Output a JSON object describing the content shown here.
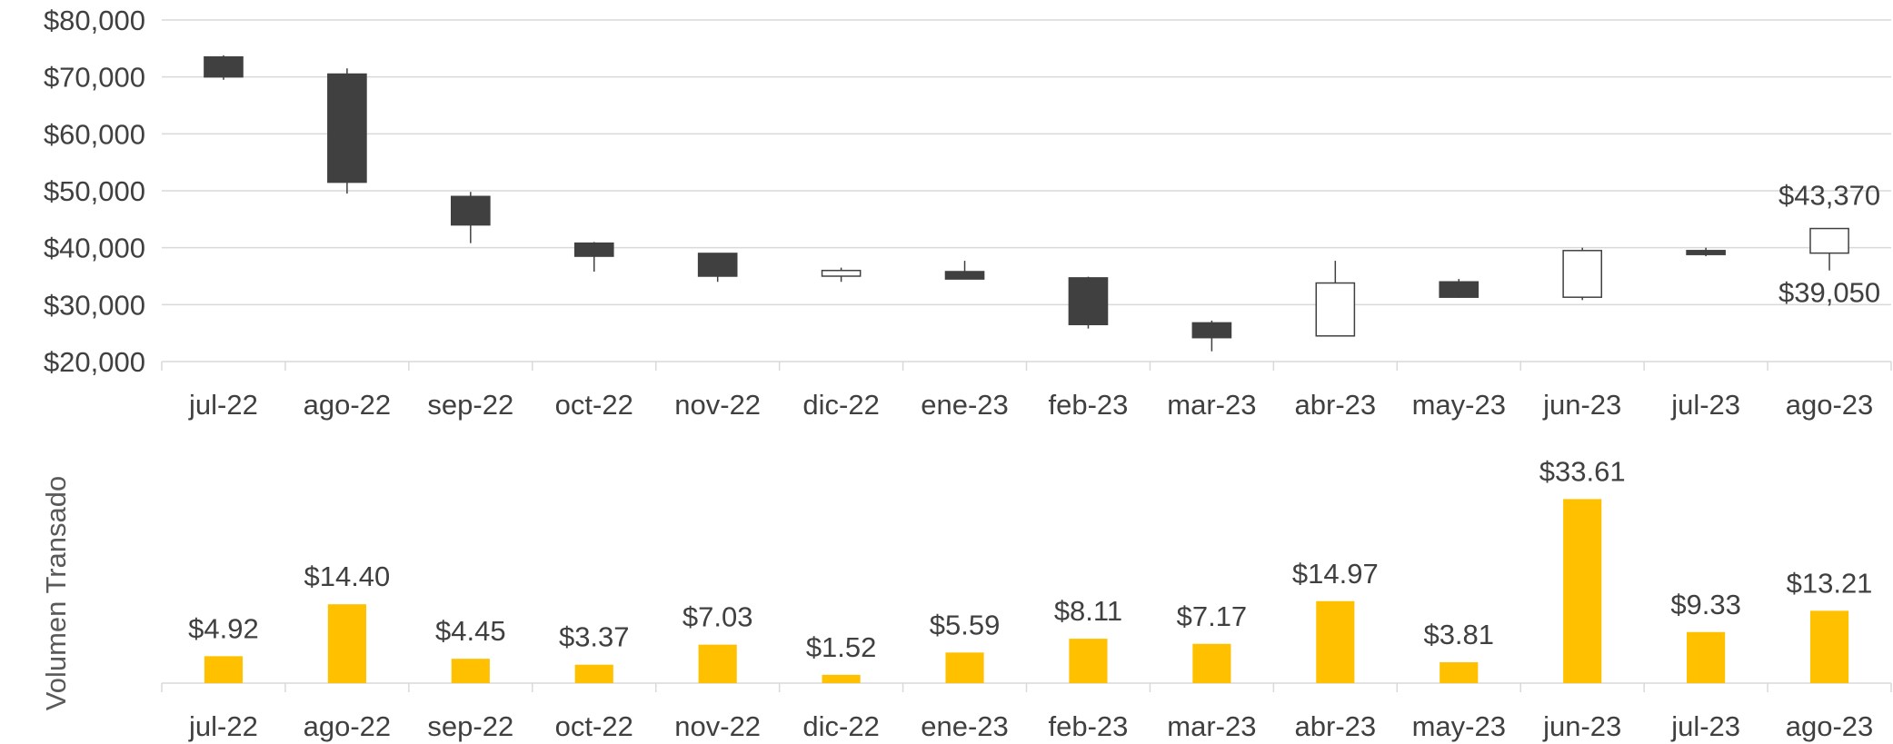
{
  "chart_data": [
    {
      "type": "candlestick",
      "categories": [
        "jul-22",
        "ago-22",
        "sep-22",
        "oct-22",
        "nov-22",
        "dic-22",
        "ene-23",
        "feb-23",
        "mar-23",
        "abr-23",
        "may-23",
        "jun-23",
        "jul-23",
        "ago-23"
      ],
      "series": [
        {
          "open": 73500,
          "high": 73800,
          "low": 69500,
          "close": 70000
        },
        {
          "open": 70500,
          "high": 71500,
          "low": 49500,
          "close": 51500
        },
        {
          "open": 49000,
          "high": 49800,
          "low": 40800,
          "close": 44000
        },
        {
          "open": 40800,
          "high": 41000,
          "low": 35800,
          "close": 38500
        },
        {
          "open": 39000,
          "high": 39000,
          "low": 34000,
          "close": 35000
        },
        {
          "open": 35000,
          "high": 36500,
          "low": 34000,
          "close": 36000
        },
        {
          "open": 35800,
          "high": 37700,
          "low": 34500,
          "close": 34500
        },
        {
          "open": 34700,
          "high": 34900,
          "low": 25800,
          "close": 26500
        },
        {
          "open": 26800,
          "high": 27200,
          "low": 21800,
          "close": 24200
        },
        {
          "open": 24500,
          "high": 37700,
          "low": 24500,
          "close": 33800
        },
        {
          "open": 34000,
          "high": 34500,
          "low": 31200,
          "close": 31300
        },
        {
          "open": 31300,
          "high": 40000,
          "low": 30800,
          "close": 39500
        },
        {
          "open": 39500,
          "high": 40000,
          "low": 38500,
          "close": 38800
        },
        {
          "open": 39050,
          "high": 43370,
          "low": 36000,
          "close": 43370
        }
      ],
      "yticks": [
        "$20,000",
        "$30,000",
        "$40,000",
        "$50,000",
        "$60,000",
        "$70,000",
        "$80,000"
      ],
      "ylim": [
        20000,
        80000
      ],
      "annotations": [
        {
          "category": "ago-23",
          "text": "$43,370",
          "position": "above"
        },
        {
          "category": "ago-23",
          "text": "$39,050",
          "position": "below"
        }
      ],
      "colors": {
        "down": "#404040",
        "up": "#ffffff",
        "outline": "#404040",
        "grid": "#d9d9d9"
      },
      "grid": true
    },
    {
      "type": "bar",
      "categories": [
        "jul-22",
        "ago-22",
        "sep-22",
        "oct-22",
        "nov-22",
        "dic-22",
        "ene-23",
        "feb-23",
        "mar-23",
        "abr-23",
        "may-23",
        "jun-23",
        "jul-23",
        "ago-23"
      ],
      "values": [
        4.92,
        14.4,
        4.45,
        3.37,
        7.03,
        1.52,
        5.59,
        8.11,
        7.17,
        14.97,
        3.81,
        33.61,
        9.33,
        13.21
      ],
      "data_labels": [
        "$4.92",
        "$14.40",
        "$4.45",
        "$3.37",
        "$7.03",
        "$1.52",
        "$5.59",
        "$8.11",
        "$7.17",
        "$14.97",
        "$3.81",
        "$33.61",
        "$9.33",
        "$13.21"
      ],
      "ylabel": "Volumen Transado",
      "ylim": [
        0,
        35
      ],
      "colors": {
        "bar": "#ffc000"
      },
      "grid": false
    }
  ]
}
